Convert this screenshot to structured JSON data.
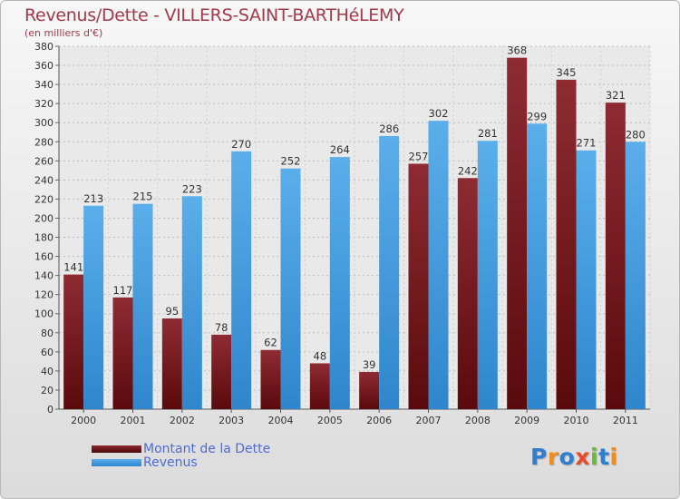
{
  "chart_data": {
    "type": "bar",
    "title": "Revenus/Dette - VILLERS-SAINT-BARTHéLEMY",
    "subtitle": "(en milliers d'€)",
    "categories": [
      "2000",
      "2001",
      "2002",
      "2003",
      "2004",
      "2005",
      "2006",
      "2007",
      "2008",
      "2009",
      "2010",
      "2011"
    ],
    "series": [
      {
        "name": "Montant de la Dette",
        "color": "#7a1a1e",
        "values": [
          141,
          117,
          95,
          78,
          62,
          48,
          39,
          257,
          242,
          368,
          345,
          321
        ]
      },
      {
        "name": "Revenus",
        "color": "#4aa3e6",
        "values": [
          213,
          215,
          223,
          270,
          252,
          264,
          286,
          302,
          281,
          299,
          271,
          280
        ]
      }
    ],
    "ylim": [
      0,
      380
    ],
    "yticks": [
      0,
      20,
      40,
      60,
      80,
      100,
      120,
      140,
      160,
      180,
      200,
      220,
      240,
      260,
      280,
      300,
      320,
      340,
      360,
      380
    ],
    "grid": true,
    "legend_position": "bottom-left"
  },
  "logo": {
    "letters": [
      "P",
      "r",
      "o",
      "x",
      "i",
      "t",
      "i"
    ],
    "colors": [
      "#2e7fd0",
      "#f08c1a",
      "#2e7fd0",
      "#e84a2a",
      "#6bb83a",
      "#2e7fd0",
      "#f08c1a"
    ]
  }
}
